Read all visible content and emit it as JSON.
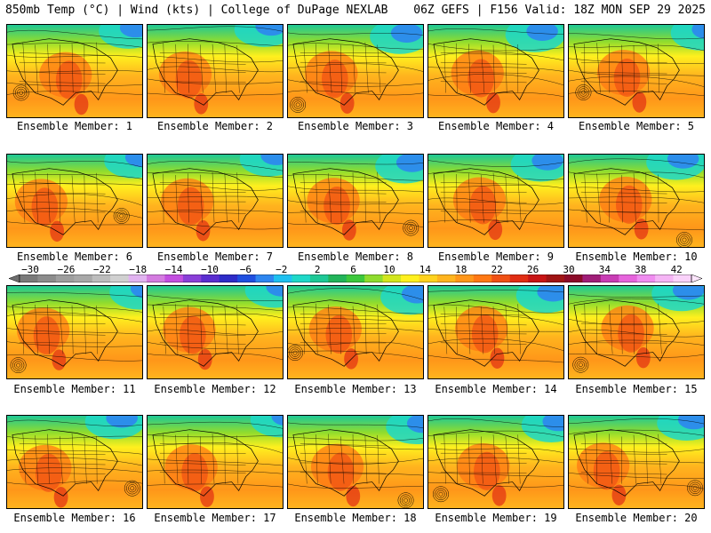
{
  "header": {
    "left": "850mb Temp (°C) | Wind (kts) | College of DuPage NEXLAB",
    "right": "06Z GEFS | F156 Valid: 18Z MON SEP 29 2025"
  },
  "members": [
    {
      "label": "Ensemble Member: 1"
    },
    {
      "label": "Ensemble Member: 2"
    },
    {
      "label": "Ensemble Member: 3"
    },
    {
      "label": "Ensemble Member: 4"
    },
    {
      "label": "Ensemble Member: 5"
    },
    {
      "label": "Ensemble Member: 6"
    },
    {
      "label": "Ensemble Member: 7"
    },
    {
      "label": "Ensemble Member: 8"
    },
    {
      "label": "Ensemble Member: 9"
    },
    {
      "label": "Ensemble Member: 10"
    },
    {
      "label": "Ensemble Member: 11"
    },
    {
      "label": "Ensemble Member: 12"
    },
    {
      "label": "Ensemble Member: 13"
    },
    {
      "label": "Ensemble Member: 14"
    },
    {
      "label": "Ensemble Member: 15"
    },
    {
      "label": "Ensemble Member: 16"
    },
    {
      "label": "Ensemble Member: 17"
    },
    {
      "label": "Ensemble Member: 18"
    },
    {
      "label": "Ensemble Member: 19"
    },
    {
      "label": "Ensemble Member: 20"
    }
  ],
  "colorbar": {
    "tick_labels": [
      "−30",
      "−26",
      "−22",
      "−18",
      "−14",
      "−10",
      "−6",
      "−2",
      "2",
      "6",
      "10",
      "14",
      "18",
      "22",
      "26",
      "30",
      "34",
      "38",
      "42"
    ],
    "colors": [
      "#7a7a7a",
      "#8c8c8c",
      "#9e9e9e",
      "#a8a8a8",
      "#bdbdbd",
      "#d0d0d0",
      "#e1b3f0",
      "#d47be0",
      "#c34fe0",
      "#8a3fd8",
      "#5a2ed0",
      "#2e2cc8",
      "#1f4fe0",
      "#2e86f0",
      "#1ec0f0",
      "#1ed8c8",
      "#1ec896",
      "#22b45a",
      "#3cc83c",
      "#8fdc2e",
      "#d2e61e",
      "#fff01e",
      "#ffd21e",
      "#ffb41e",
      "#ff9619",
      "#ff7814",
      "#f05014",
      "#e12d14",
      "#c81414",
      "#a01414",
      "#8c0a28",
      "#a01e78",
      "#c83cb4",
      "#e664dc",
      "#f08cf0",
      "#f5b4f5",
      "#fad2fa"
    ]
  }
}
